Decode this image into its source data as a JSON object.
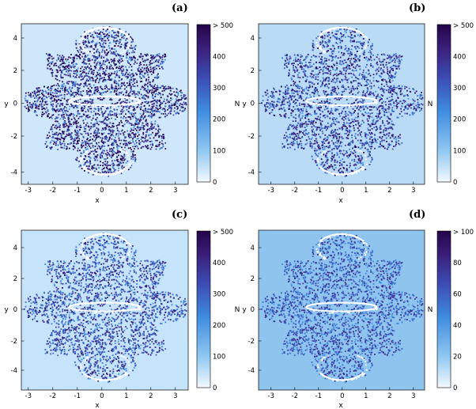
{
  "chart_data": [
    {
      "type": "heatmap",
      "panel_label": "(a)",
      "xlabel": "x",
      "ylabel": "y",
      "colorbar_label": "N",
      "xlim": [
        -3.4,
        3.4
      ],
      "ylim": [
        -5.4,
        5.0
      ],
      "xticks": [
        -3,
        -2,
        -1,
        0,
        1,
        2,
        3
      ],
      "yticks": [
        -4,
        -2,
        0,
        2,
        4
      ],
      "colorbar_ticks": [
        "0",
        "100",
        "200",
        "300",
        "400",
        "> 500"
      ],
      "colorbar_max": 500,
      "background_color": "#cfe7fb",
      "point_density": 1.0,
      "point_darkness": 0.85
    },
    {
      "type": "heatmap",
      "panel_label": "(b)",
      "xlabel": "x",
      "ylabel": "y",
      "colorbar_label": "N",
      "xlim": [
        -3.4,
        3.4
      ],
      "ylim": [
        -5.4,
        5.0
      ],
      "xticks": [
        -3,
        -2,
        -1,
        0,
        1,
        2,
        3
      ],
      "yticks": [
        -4,
        -2,
        0,
        2,
        4
      ],
      "colorbar_ticks": [
        "0",
        "100",
        "200",
        "300",
        "400",
        "> 500"
      ],
      "colorbar_max": 500,
      "background_color": "#b9dbf6",
      "point_density": 1.0,
      "point_darkness": 0.6
    },
    {
      "type": "heatmap",
      "panel_label": "(c)",
      "xlabel": "x",
      "ylabel": "y",
      "colorbar_label": "N",
      "xlim": [
        -3.4,
        3.4
      ],
      "ylim": [
        -5.4,
        5.0
      ],
      "xticks": [
        -3,
        -2,
        -1,
        0,
        1,
        2,
        3
      ],
      "yticks": [
        -4,
        -2,
        0,
        2,
        4
      ],
      "colorbar_ticks": [
        "0",
        "100",
        "200",
        "300",
        "400",
        "> 500"
      ],
      "colorbar_max": 500,
      "background_color": "#c5e3fa",
      "point_density": 1.0,
      "point_darkness": 0.5
    },
    {
      "type": "heatmap",
      "panel_label": "(d)",
      "xlabel": "x",
      "ylabel": "y",
      "colorbar_label": "N",
      "xlim": [
        -3.4,
        3.4
      ],
      "ylim": [
        -5.4,
        5.0
      ],
      "xticks": [
        -3,
        -2,
        -1,
        0,
        1,
        2,
        3
      ],
      "yticks": [
        -4,
        -2,
        0,
        2,
        4
      ],
      "colorbar_ticks": [
        "0",
        "20",
        "40",
        "60",
        "80",
        "> 100"
      ],
      "colorbar_max": 100,
      "background_color": "#8fc4ef",
      "point_density": 0.9,
      "point_darkness": 0.45
    }
  ],
  "colors": {
    "colormap": [
      "#f2f9ff",
      "#8fc7f2",
      "#3f8ce0",
      "#3d4fb8",
      "#3a1f7a",
      "#24054a"
    ],
    "axis": "#000000",
    "orbit_line": "#ffffff"
  }
}
